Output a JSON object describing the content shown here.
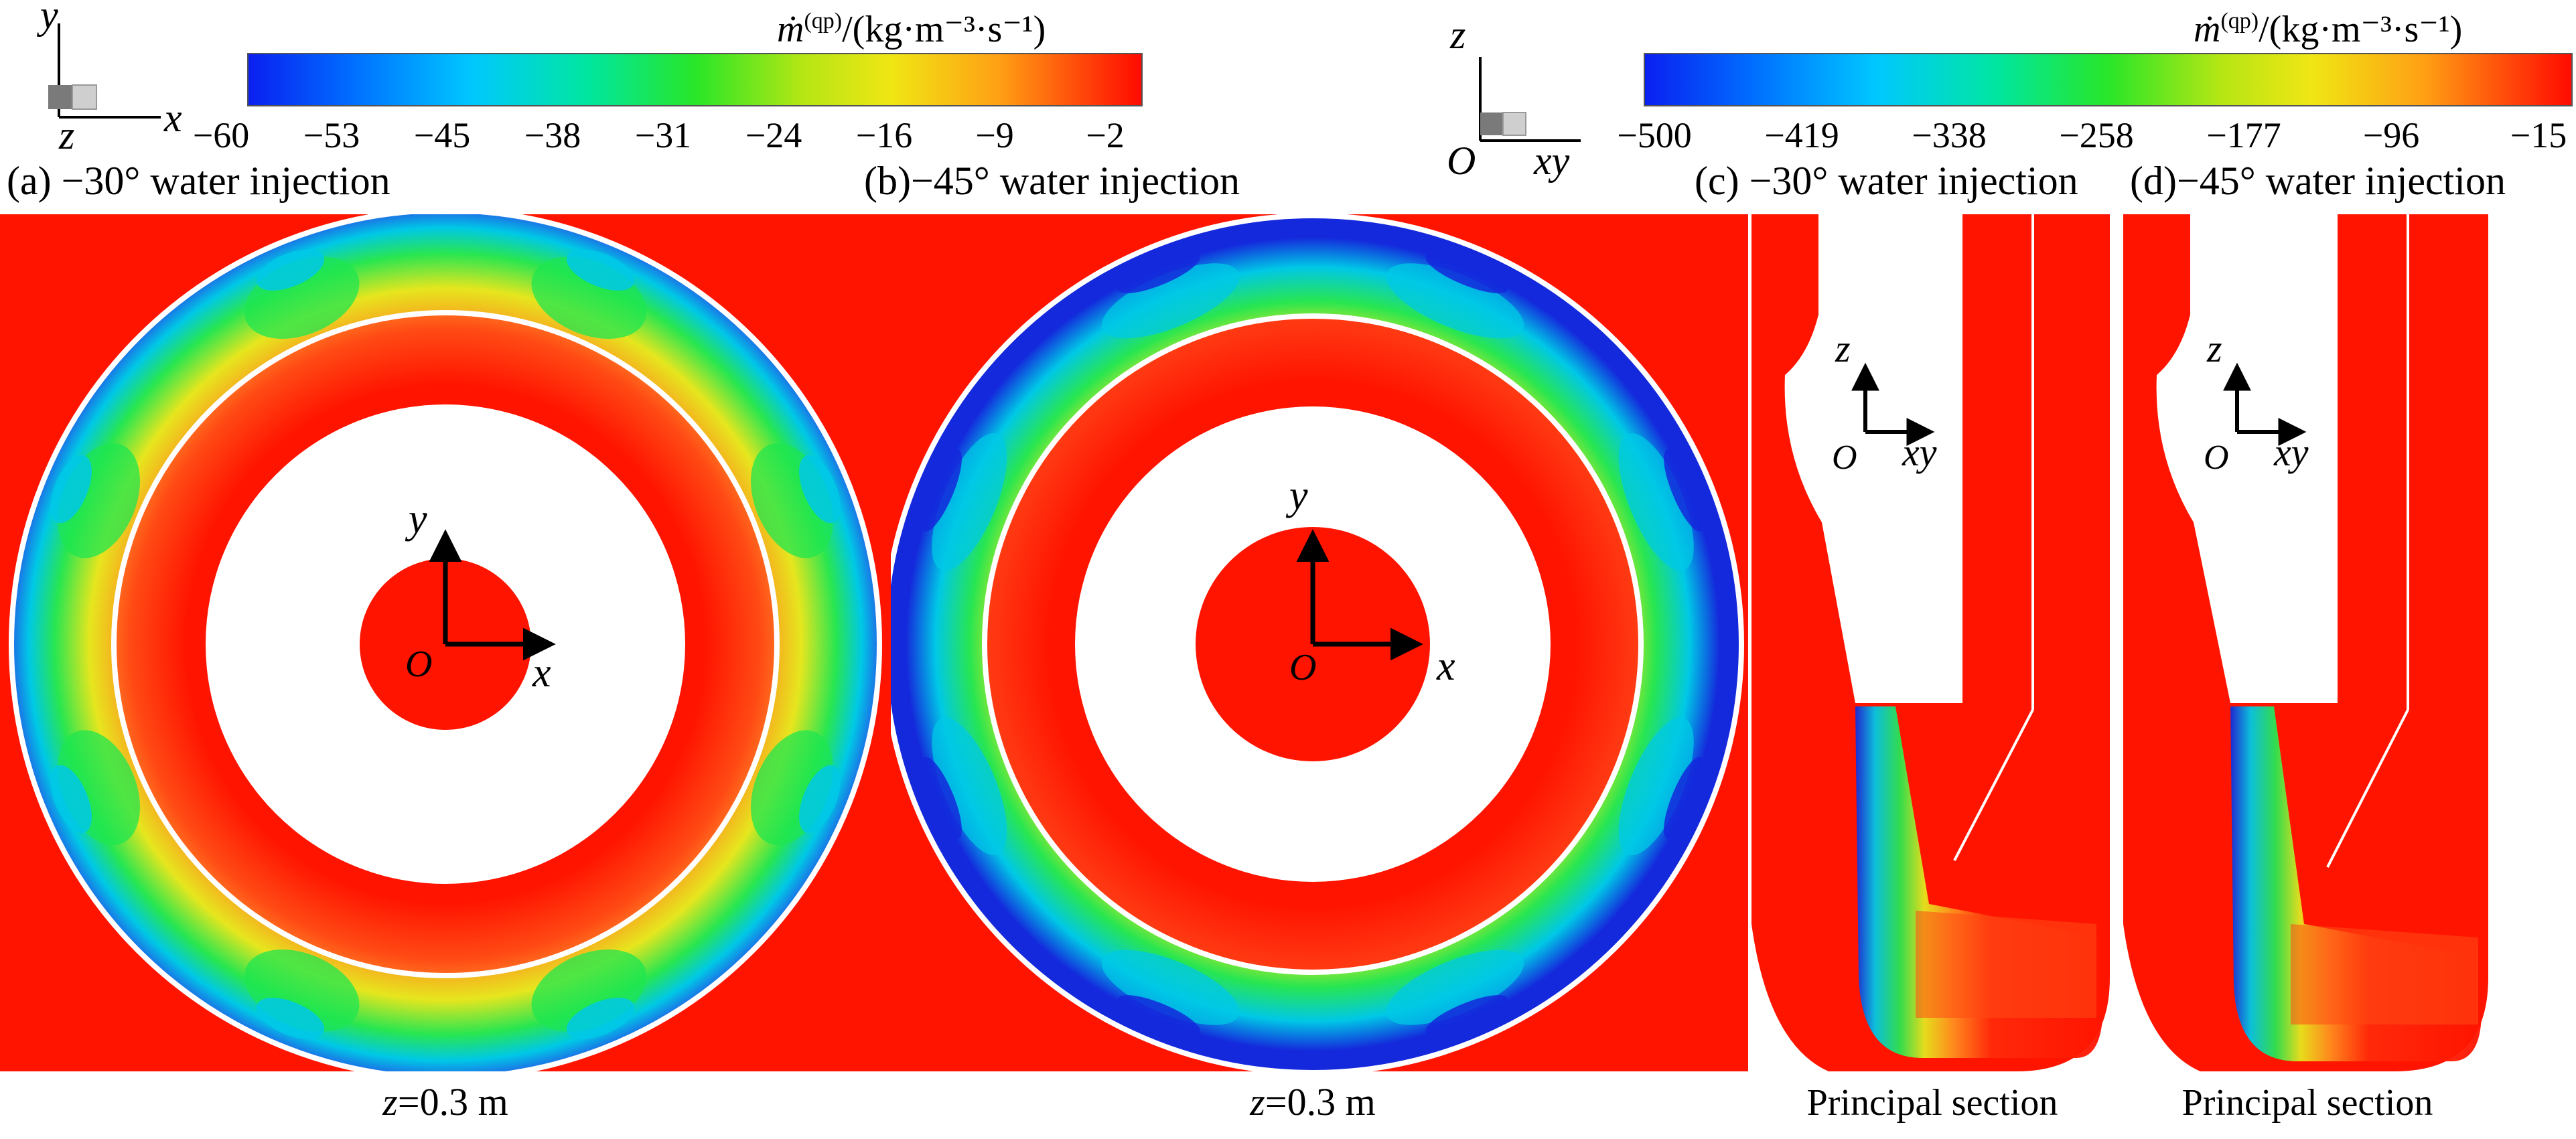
{
  "colorbars": [
    {
      "title_symbol": "ṁ",
      "title_superscript": "(qp)",
      "title_unit": "/(kg·m⁻³·s⁻¹)",
      "ticks": [
        "−60",
        "−53",
        "−45",
        "−38",
        "−31",
        "−24",
        "−16",
        "−9",
        "−2"
      ],
      "colors": [
        "#0a1ff0",
        "#00b4ff",
        "#00e6a0",
        "#28e628",
        "#b4e614",
        "#f0e614",
        "#ffa014",
        "#ff3c0a",
        "#ff0a00"
      ]
    },
    {
      "title_symbol": "ṁ",
      "title_superscript": "(qp)",
      "title_unit": "/(kg·m⁻³·s⁻¹)",
      "ticks": [
        "−500",
        "−419",
        "−338",
        "−258",
        "−177",
        "−96",
        "−15"
      ],
      "colors": [
        "#0a1ff0",
        "#00b4ff",
        "#00e6a0",
        "#28e628",
        "#b4e614",
        "#f0e614",
        "#ffa014",
        "#ff3c0a",
        "#ff0a00"
      ]
    }
  ],
  "triads": {
    "left": {
      "axes": [
        "y",
        "x",
        "z"
      ]
    },
    "right": {
      "axes": [
        "z",
        "O",
        "xy"
      ]
    }
  },
  "panels": [
    {
      "id": "a",
      "caption": "(a) −30° water injection",
      "axes": [
        "y",
        "x",
        "O"
      ],
      "footer": "z=0.3 m"
    },
    {
      "id": "b",
      "caption": "(b)−45° water injection",
      "axes": [
        "y",
        "x",
        "O"
      ],
      "footer": "z=0.3 m"
    },
    {
      "id": "c",
      "caption": "(c) −30° water injection",
      "axes": [
        "z",
        "xy",
        "O"
      ],
      "footer": "Principal section"
    },
    {
      "id": "d",
      "caption": "(d)−45° water injection",
      "axes": [
        "z",
        "xy",
        "O"
      ],
      "footer": "Principal section"
    }
  ],
  "field_colors": {
    "red": "#ff1400",
    "orange": "#ff6a14",
    "yellow": "#e6e61e",
    "green": "#1ee650",
    "cyan": "#00c8e6",
    "blue": "#1428dc"
  }
}
